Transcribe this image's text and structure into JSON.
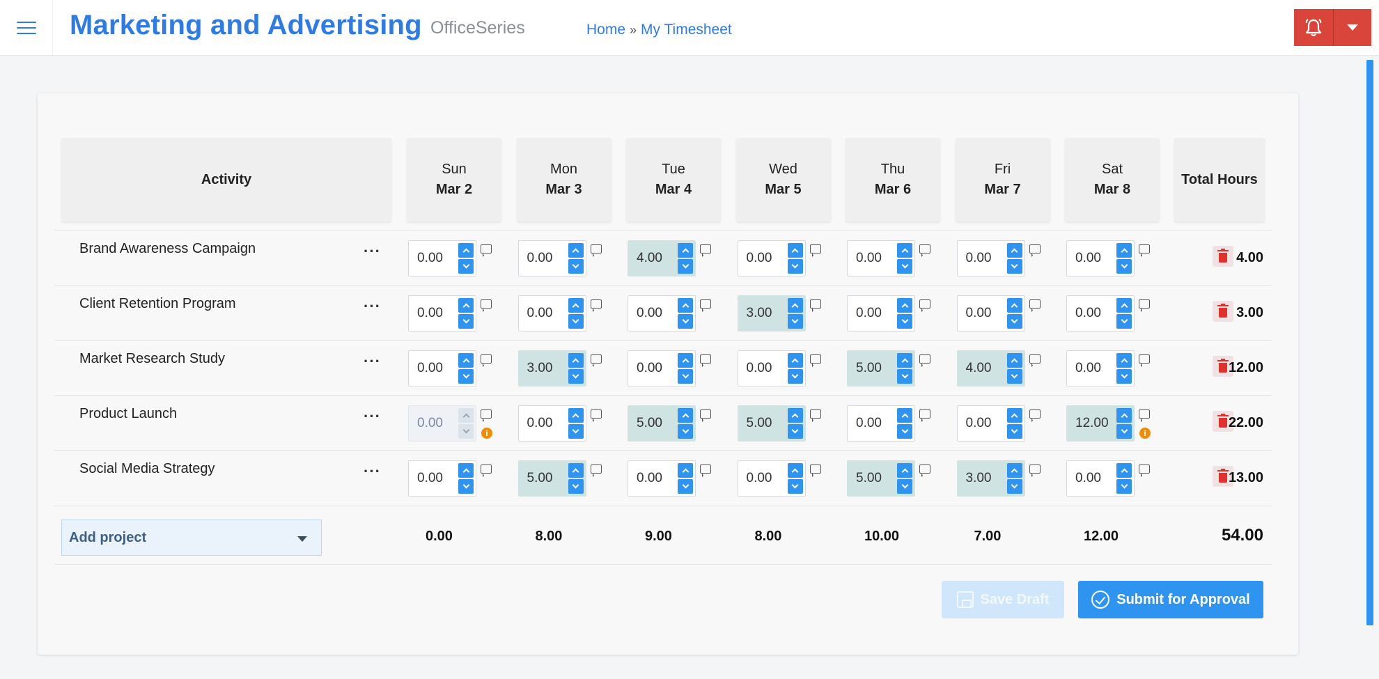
{
  "header": {
    "title": "Marketing and Advertising",
    "subtitle": "OfficeSeries",
    "breadcrumbs": [
      "Home",
      "My Timesheet"
    ],
    "breadcrumb_separator": "»"
  },
  "table": {
    "activity_header": "Activity",
    "total_header": "Total Hours",
    "days": [
      {
        "day": "Sun",
        "date": "Mar 2"
      },
      {
        "day": "Mon",
        "date": "Mar 3"
      },
      {
        "day": "Tue",
        "date": "Mar 4"
      },
      {
        "day": "Wed",
        "date": "Mar 5"
      },
      {
        "day": "Thu",
        "date": "Mar 6"
      },
      {
        "day": "Fri",
        "date": "Mar 7"
      },
      {
        "day": "Sat",
        "date": "Mar 8"
      }
    ],
    "rows": [
      {
        "name": "Brand Awareness Campaign",
        "hours": [
          "0.00",
          "0.00",
          "4.00",
          "0.00",
          "0.00",
          "0.00",
          "0.00"
        ],
        "highlight": [
          0,
          0,
          1,
          0,
          0,
          0,
          0
        ],
        "disabled": [
          0,
          0,
          0,
          0,
          0,
          0,
          0
        ],
        "warning": [
          0,
          0,
          0,
          0,
          0,
          0,
          0
        ],
        "total": "4.00"
      },
      {
        "name": "Client Retention Program",
        "hours": [
          "0.00",
          "0.00",
          "0.00",
          "3.00",
          "0.00",
          "0.00",
          "0.00"
        ],
        "highlight": [
          0,
          0,
          0,
          1,
          0,
          0,
          0
        ],
        "disabled": [
          0,
          0,
          0,
          0,
          0,
          0,
          0
        ],
        "warning": [
          0,
          0,
          0,
          0,
          0,
          0,
          0
        ],
        "total": "3.00"
      },
      {
        "name": "Market Research Study",
        "hours": [
          "0.00",
          "3.00",
          "0.00",
          "0.00",
          "5.00",
          "4.00",
          "0.00"
        ],
        "highlight": [
          0,
          1,
          0,
          0,
          1,
          1,
          0
        ],
        "disabled": [
          0,
          0,
          0,
          0,
          0,
          0,
          0
        ],
        "warning": [
          0,
          0,
          0,
          0,
          0,
          0,
          0
        ],
        "total": "12.00"
      },
      {
        "name": "Product Launch",
        "hours": [
          "0.00",
          "0.00",
          "5.00",
          "5.00",
          "0.00",
          "0.00",
          "12.00"
        ],
        "highlight": [
          0,
          0,
          1,
          1,
          0,
          0,
          1
        ],
        "disabled": [
          1,
          0,
          0,
          0,
          0,
          0,
          0
        ],
        "warning": [
          1,
          0,
          0,
          0,
          0,
          0,
          1
        ],
        "total": "22.00"
      },
      {
        "name": "Social Media Strategy",
        "hours": [
          "0.00",
          "5.00",
          "0.00",
          "0.00",
          "5.00",
          "3.00",
          "0.00"
        ],
        "highlight": [
          0,
          1,
          0,
          0,
          1,
          1,
          0
        ],
        "disabled": [
          0,
          0,
          0,
          0,
          0,
          0,
          0
        ],
        "warning": [
          0,
          0,
          0,
          0,
          0,
          0,
          0
        ],
        "total": "13.00"
      }
    ],
    "more_label": "···",
    "warning_glyph": "i",
    "add_project_label": "Add project",
    "day_totals": [
      "0.00",
      "8.00",
      "9.00",
      "8.00",
      "10.00",
      "7.00",
      "12.00"
    ],
    "grand_total": "54.00"
  },
  "actions": {
    "save_draft": "Save Draft",
    "submit": "Submit for Approval"
  },
  "colors": {
    "accent": "#2f7be6",
    "button_blue": "#2f94f0",
    "header_red": "#d9453b",
    "highlight_cell": "#cfe3e3",
    "delete_red": "#e0312c",
    "warning_orange": "#f28b00"
  },
  "icons": [
    "menu-icon",
    "bell-icon",
    "caret-down-icon",
    "comment-icon",
    "warning-icon",
    "trash-icon",
    "save-icon",
    "check-circle-icon"
  ]
}
